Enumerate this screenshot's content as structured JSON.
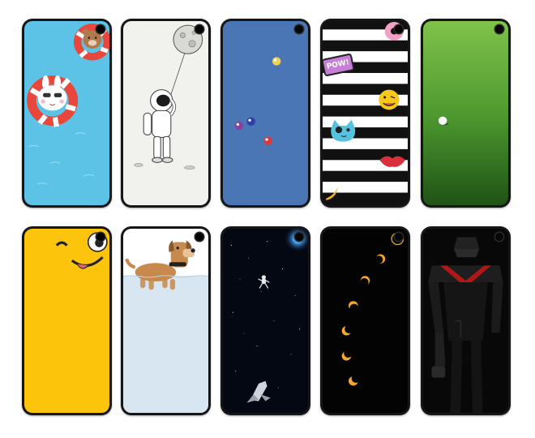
{
  "gallery": {
    "top_row": [
      {
        "wallpaper": "swimming-animals",
        "background": "#5cc3e6"
      },
      {
        "wallpaper": "astronaut-moon-balloon",
        "background": "#f1f1ee"
      },
      {
        "wallpaper": "billiard-balls",
        "background": "#4a76b6"
      },
      {
        "wallpaper": "stickers-stripes",
        "background": "#111111"
      },
      {
        "wallpaper": "golf-ball-grass",
        "background": "#3f8a2a"
      }
    ],
    "bottom_row": [
      {
        "wallpaper": "winking-face",
        "background": "#fcc40a"
      },
      {
        "wallpaper": "dog-water",
        "background": "#d8e6f1"
      },
      {
        "wallpaper": "space-astronaut-shuttle",
        "background": "#040813"
      },
      {
        "wallpaper": "eclipse-sequence",
        "background": "#030303"
      },
      {
        "wallpaper": "robot-silhouette",
        "background": "#080808"
      }
    ],
    "colors": {
      "frame": "#161618",
      "sticker_pow_text": "POW!"
    }
  }
}
